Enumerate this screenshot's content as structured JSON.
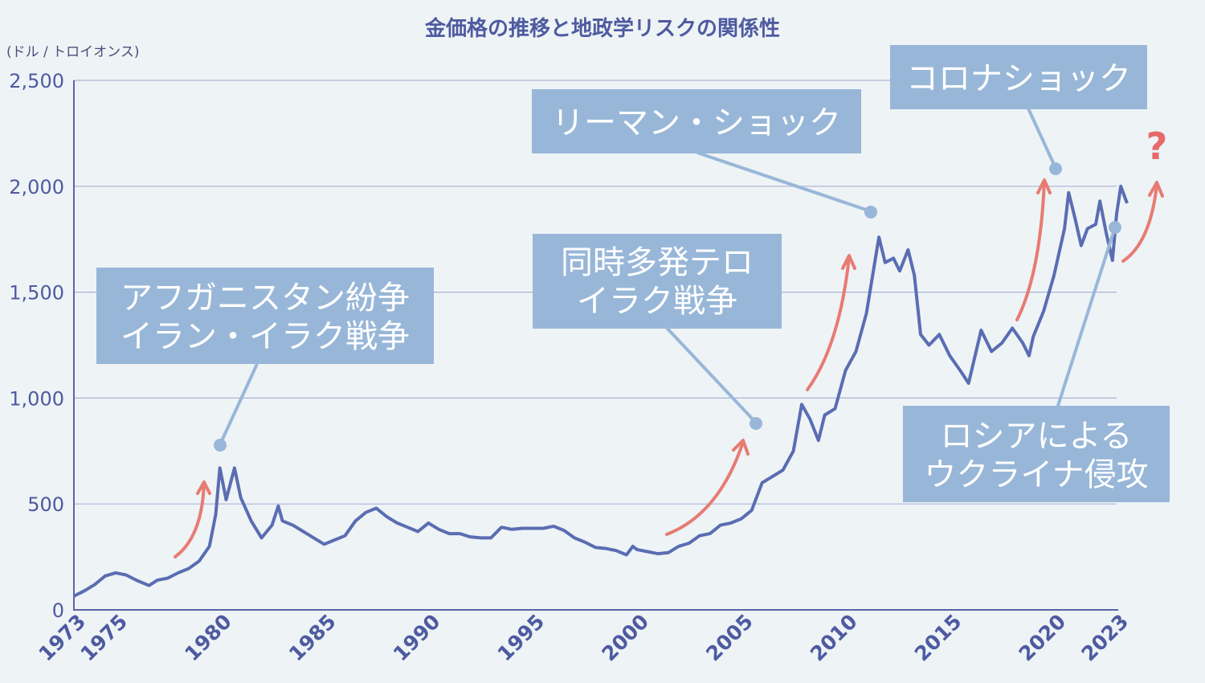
{
  "chart_data": {
    "type": "line",
    "title": "金価格の推移と地政学リスクの関係性",
    "unit_label": "(ドル / トロイオンス)",
    "y_ticks": [
      "0",
      "500",
      "1,000",
      "1,500",
      "2,000",
      "2,500"
    ],
    "ylim": [
      0,
      2500
    ],
    "x_ticks": [
      "1973",
      "1975",
      "1980",
      "1985",
      "1990",
      "1995",
      "2000",
      "2005",
      "2010",
      "2015",
      "2020",
      "2023"
    ],
    "xlim": [
      1973,
      2023
    ],
    "grid": true,
    "series": [
      {
        "color": "#5a6db2",
        "points": [
          [
            1973.0,
            65
          ],
          [
            1973.5,
            90
          ],
          [
            1974.0,
            120
          ],
          [
            1974.5,
            160
          ],
          [
            1975.0,
            175
          ],
          [
            1975.5,
            165
          ],
          [
            1976.0,
            140
          ],
          [
            1976.6,
            115
          ],
          [
            1977.0,
            140
          ],
          [
            1977.5,
            150
          ],
          [
            1978.0,
            175
          ],
          [
            1978.5,
            195
          ],
          [
            1979.0,
            230
          ],
          [
            1979.5,
            300
          ],
          [
            1979.8,
            450
          ],
          [
            1980.0,
            670
          ],
          [
            1980.3,
            520
          ],
          [
            1980.7,
            670
          ],
          [
            1981.0,
            530
          ],
          [
            1981.5,
            420
          ],
          [
            1982.0,
            340
          ],
          [
            1982.5,
            400
          ],
          [
            1982.8,
            490
          ],
          [
            1983.0,
            420
          ],
          [
            1983.5,
            400
          ],
          [
            1984.0,
            370
          ],
          [
            1984.5,
            340
          ],
          [
            1985.0,
            310
          ],
          [
            1985.5,
            330
          ],
          [
            1986.0,
            350
          ],
          [
            1986.5,
            420
          ],
          [
            1987.0,
            460
          ],
          [
            1987.5,
            480
          ],
          [
            1988.0,
            440
          ],
          [
            1988.5,
            410
          ],
          [
            1989.0,
            390
          ],
          [
            1989.5,
            370
          ],
          [
            1990.0,
            410
          ],
          [
            1990.5,
            380
          ],
          [
            1991.0,
            360
          ],
          [
            1991.5,
            360
          ],
          [
            1992.0,
            345
          ],
          [
            1992.5,
            340
          ],
          [
            1993.0,
            340
          ],
          [
            1993.5,
            390
          ],
          [
            1994.0,
            380
          ],
          [
            1994.5,
            385
          ],
          [
            1995.0,
            385
          ],
          [
            1995.5,
            385
          ],
          [
            1996.0,
            395
          ],
          [
            1996.5,
            375
          ],
          [
            1997.0,
            340
          ],
          [
            1997.5,
            320
          ],
          [
            1998.0,
            295
          ],
          [
            1998.5,
            290
          ],
          [
            1999.0,
            280
          ],
          [
            1999.5,
            260
          ],
          [
            1999.8,
            300
          ],
          [
            2000.0,
            285
          ],
          [
            2000.5,
            275
          ],
          [
            2001.0,
            265
          ],
          [
            2001.5,
            270
          ],
          [
            2002.0,
            300
          ],
          [
            2002.5,
            315
          ],
          [
            2003.0,
            350
          ],
          [
            2003.5,
            360
          ],
          [
            2004.0,
            400
          ],
          [
            2004.5,
            410
          ],
          [
            2005.0,
            430
          ],
          [
            2005.5,
            470
          ],
          [
            2006.0,
            600
          ],
          [
            2006.5,
            630
          ],
          [
            2007.0,
            660
          ],
          [
            2007.5,
            750
          ],
          [
            2007.9,
            970
          ],
          [
            2008.3,
            900
          ],
          [
            2008.7,
            800
          ],
          [
            2009.0,
            920
          ],
          [
            2009.5,
            950
          ],
          [
            2010.0,
            1130
          ],
          [
            2010.5,
            1220
          ],
          [
            2011.0,
            1400
          ],
          [
            2011.6,
            1760
          ],
          [
            2011.9,
            1640
          ],
          [
            2012.3,
            1660
          ],
          [
            2012.6,
            1600
          ],
          [
            2013.0,
            1700
          ],
          [
            2013.3,
            1580
          ],
          [
            2013.6,
            1300
          ],
          [
            2014.0,
            1250
          ],
          [
            2014.5,
            1300
          ],
          [
            2015.0,
            1200
          ],
          [
            2015.5,
            1130
          ],
          [
            2015.9,
            1070
          ],
          [
            2016.5,
            1320
          ],
          [
            2017.0,
            1220
          ],
          [
            2017.5,
            1260
          ],
          [
            2018.0,
            1330
          ],
          [
            2018.5,
            1260
          ],
          [
            2018.8,
            1200
          ],
          [
            2019.0,
            1290
          ],
          [
            2019.5,
            1410
          ],
          [
            2020.0,
            1580
          ],
          [
            2020.5,
            1800
          ],
          [
            2020.7,
            1970
          ],
          [
            2021.0,
            1850
          ],
          [
            2021.3,
            1720
          ],
          [
            2021.6,
            1800
          ],
          [
            2022.0,
            1820
          ],
          [
            2022.2,
            1930
          ],
          [
            2022.5,
            1780
          ],
          [
            2022.8,
            1650
          ],
          [
            2023.0,
            1870
          ],
          [
            2023.2,
            2000
          ],
          [
            2023.5,
            1920
          ]
        ]
      }
    ]
  },
  "annotations": [
    {
      "lines": [
        "アフガニスタン紛争",
        "イラン・イラク戦争"
      ]
    },
    {
      "lines": [
        "同時多発テロ",
        "イラク戦争"
      ]
    },
    {
      "lines": [
        "リーマン・ショック"
      ]
    },
    {
      "lines": [
        "コロナショック"
      ]
    },
    {
      "lines": [
        "ロシアによる",
        "ウクライナ侵攻"
      ]
    }
  ],
  "question_mark": "?"
}
